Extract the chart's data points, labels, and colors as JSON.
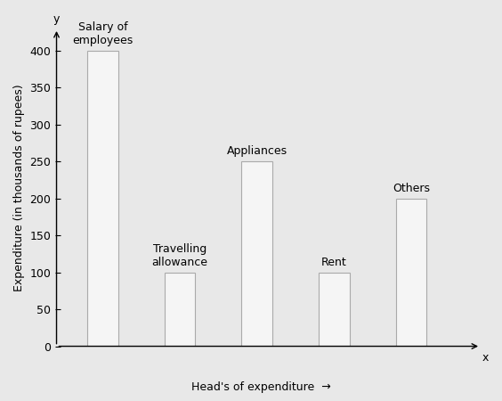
{
  "bars": [
    {
      "label": "Salary of\nemployees",
      "value": 400,
      "x": 1
    },
    {
      "label": "Travelling\nallowance",
      "value": 100,
      "x": 2
    },
    {
      "label": "Appliances",
      "value": 250,
      "x": 3
    },
    {
      "label": "Rent",
      "value": 100,
      "x": 4
    },
    {
      "label": "Others",
      "value": 200,
      "x": 5
    }
  ],
  "bar_width": 0.4,
  "bar_facecolor": "#f5f5f5",
  "bar_edgecolor": "#aaaaaa",
  "bar_linewidth": 0.8,
  "yticks": [
    0,
    50,
    100,
    150,
    200,
    250,
    300,
    350,
    400
  ],
  "ylabel": "Expenditure (in thousands of rupees)",
  "xlabel": "Head's of expenditure",
  "ylim": [
    0,
    430
  ],
  "xlim": [
    0.45,
    5.9
  ],
  "background_color": "#e8e8e8",
  "tick_fontsize": 9,
  "annotation_fontsize": 9,
  "ylabel_fontsize": 9,
  "xlabel_fontsize": 9
}
